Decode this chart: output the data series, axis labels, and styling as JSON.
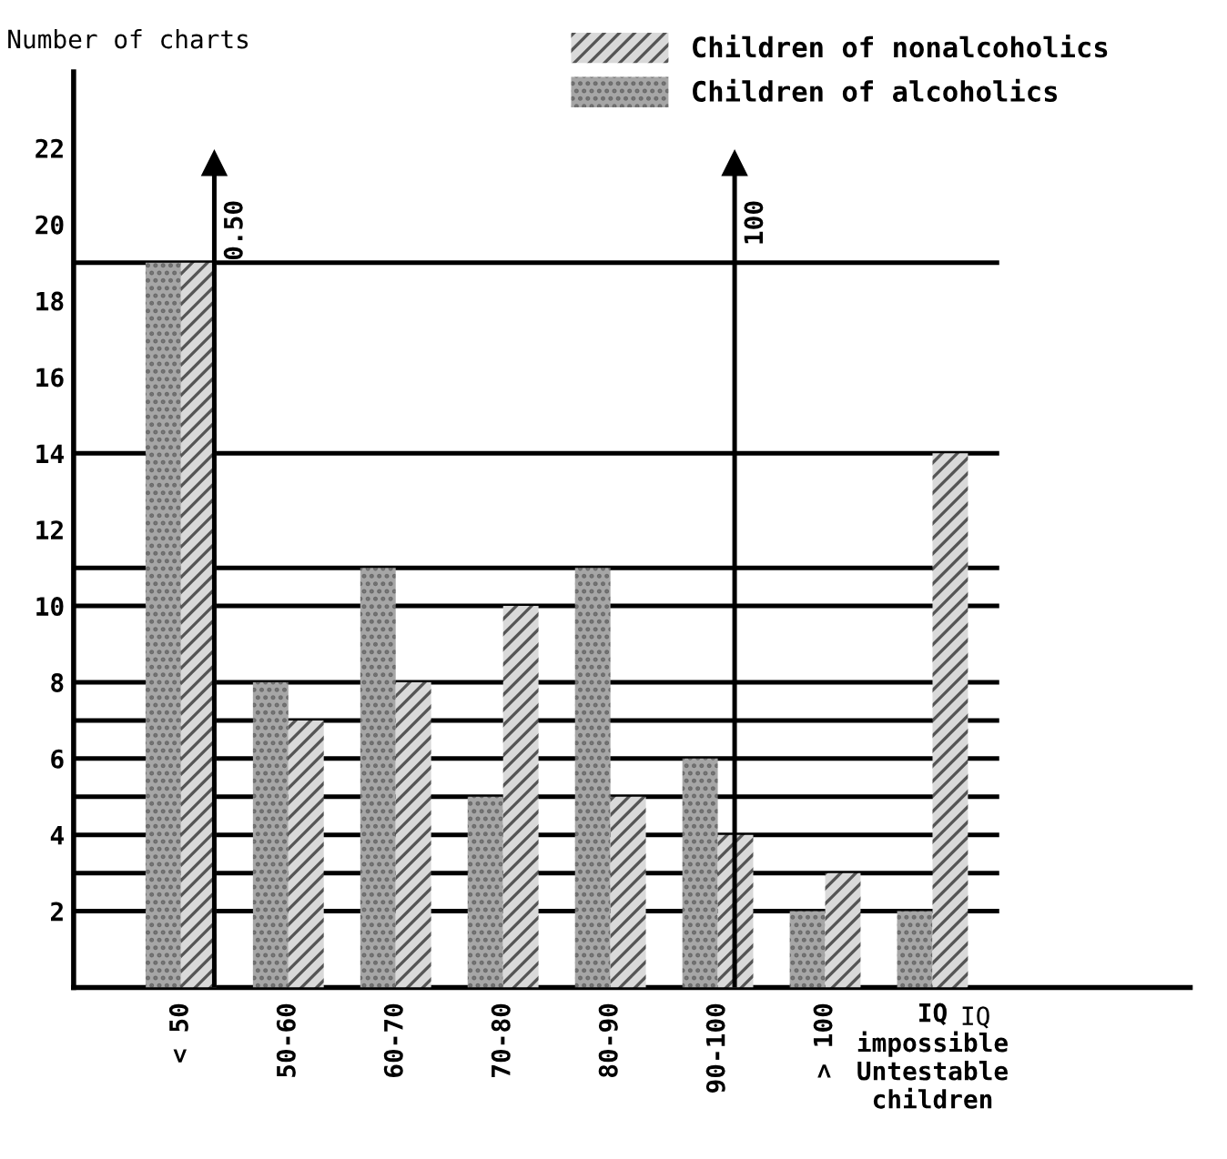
{
  "chart_data": {
    "type": "bar",
    "xlabel": "IQ",
    "ylabel": "Number of charts",
    "categories": [
      "< 50",
      "50-60",
      "60-70",
      "70-80",
      "80-90",
      "90-100",
      "> 100",
      "IQ\nimpossible\nUntestable\nchildren"
    ],
    "series": [
      {
        "name": "Children of alcoholics",
        "color": "#a6a6a6",
        "values": [
          19,
          8,
          11,
          5,
          11,
          6,
          2,
          2
        ]
      },
      {
        "name": "Children of nonalcoholics",
        "color": "#d9d9d9",
        "values": [
          19,
          7,
          8,
          10,
          5,
          4,
          3,
          14
        ]
      }
    ],
    "ylim": [
      0,
      24
    ],
    "yticks": [
      2,
      4,
      6,
      8,
      10,
      12,
      14,
      16,
      18,
      20,
      22
    ],
    "ref_lines": [
      {
        "axis": "y",
        "value": 2
      },
      {
        "axis": "y",
        "value": 3
      },
      {
        "axis": "y",
        "value": 4
      },
      {
        "axis": "y",
        "value": 5
      },
      {
        "axis": "y",
        "value": 6
      },
      {
        "axis": "y",
        "value": 7
      },
      {
        "axis": "y",
        "value": 8
      },
      {
        "axis": "y",
        "value": 10
      },
      {
        "axis": "y",
        "value": 11
      },
      {
        "axis": "y",
        "value": 14
      },
      {
        "axis": "y",
        "value": 19
      }
    ],
    "annotations": [
      "0.50",
      "100"
    ],
    "grid": false,
    "legend": "top right"
  }
}
